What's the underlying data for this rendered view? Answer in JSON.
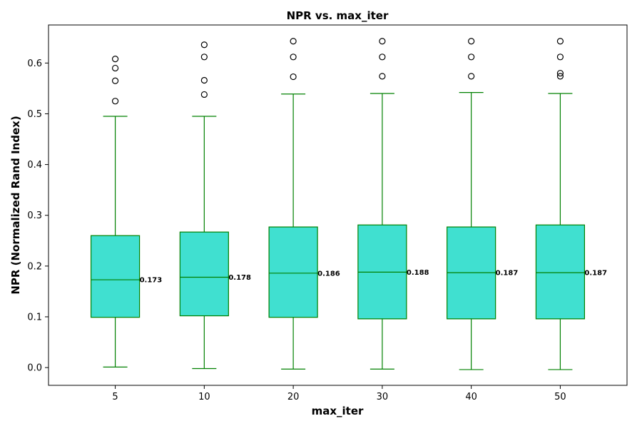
{
  "chart_data": {
    "type": "box",
    "title": "NPR vs. max_iter",
    "xlabel": "max_iter",
    "ylabel": "NPR (Normalized Rand Index)",
    "ylim": [
      -0.035,
      0.675
    ],
    "yticks": [
      0.0,
      0.1,
      0.2,
      0.3,
      0.4,
      0.5,
      0.6
    ],
    "ytick_labels": [
      "0.0",
      "0.1",
      "0.2",
      "0.3",
      "0.4",
      "0.5",
      "0.6"
    ],
    "categories": [
      "5",
      "10",
      "20",
      "30",
      "40",
      "50"
    ],
    "grid": false,
    "legend": "none",
    "colors": {
      "box_fill": "#40e0d0",
      "box_edge": "#008000",
      "median": "#008000",
      "whisker": "#008000",
      "outlier_edge": "#000000"
    },
    "boxes": [
      {
        "category": "5",
        "whislo": 0.001,
        "q1": 0.099,
        "median": 0.173,
        "q3": 0.26,
        "whishi": 0.495,
        "fliers": [
          0.525,
          0.565,
          0.59,
          0.608
        ],
        "median_label": "0.173"
      },
      {
        "category": "10",
        "whislo": -0.002,
        "q1": 0.102,
        "median": 0.178,
        "q3": 0.267,
        "whishi": 0.495,
        "fliers": [
          0.538,
          0.566,
          0.612,
          0.636
        ],
        "median_label": "0.178"
      },
      {
        "category": "20",
        "whislo": -0.003,
        "q1": 0.099,
        "median": 0.186,
        "q3": 0.277,
        "whishi": 0.539,
        "fliers": [
          0.573,
          0.612,
          0.643
        ],
        "median_label": "0.186"
      },
      {
        "category": "30",
        "whislo": -0.003,
        "q1": 0.096,
        "median": 0.188,
        "q3": 0.281,
        "whishi": 0.54,
        "fliers": [
          0.574,
          0.612,
          0.643
        ],
        "median_label": "0.188"
      },
      {
        "category": "40",
        "whislo": -0.004,
        "q1": 0.096,
        "median": 0.187,
        "q3": 0.277,
        "whishi": 0.542,
        "fliers": [
          0.574,
          0.612,
          0.643
        ],
        "median_label": "0.187"
      },
      {
        "category": "50",
        "whislo": -0.004,
        "q1": 0.096,
        "median": 0.187,
        "q3": 0.281,
        "whishi": 0.54,
        "fliers": [
          0.574,
          0.58,
          0.612,
          0.643
        ],
        "median_label": "0.187"
      }
    ]
  }
}
